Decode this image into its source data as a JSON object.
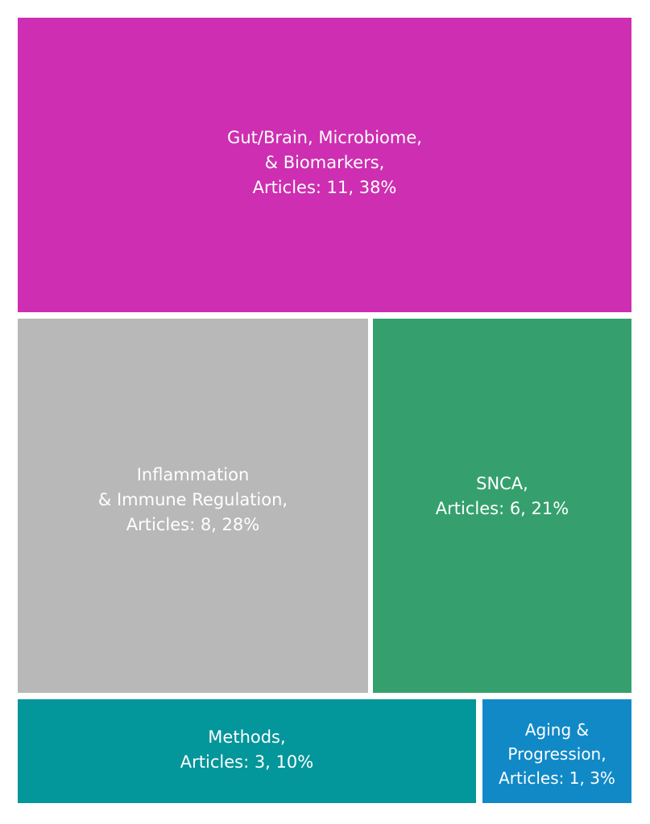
{
  "chart_data": {
    "type": "treemap",
    "title": "",
    "unit": "Articles",
    "nodes": [
      {
        "name": "Gut/Brain, Microbiome, & Biomarkers",
        "articles": 11,
        "percent": 38,
        "color": "#CE2EB1",
        "label": "Gut/Brain, Microbiome,\n& Biomarkers,\nArticles: 11, 38%"
      },
      {
        "name": "Inflammation & Immune Regulation",
        "articles": 8,
        "percent": 28,
        "color": "#B8B8B8",
        "label": "Inflammation\n& Immune Regulation,\nArticles: 8, 28%"
      },
      {
        "name": "SNCA",
        "articles": 6,
        "percent": 21,
        "color": "#35A06E",
        "label": "SNCA,\nArticles: 6, 21%"
      },
      {
        "name": "Methods",
        "articles": 3,
        "percent": 10,
        "color": "#03969A",
        "label": "Methods,\nArticles: 3, 10%"
      },
      {
        "name": "Aging & Progression",
        "articles": 1,
        "percent": 3,
        "color": "#1189C7",
        "label": "Aging &\nProgression,\nArticles: 1, 3%"
      }
    ]
  }
}
